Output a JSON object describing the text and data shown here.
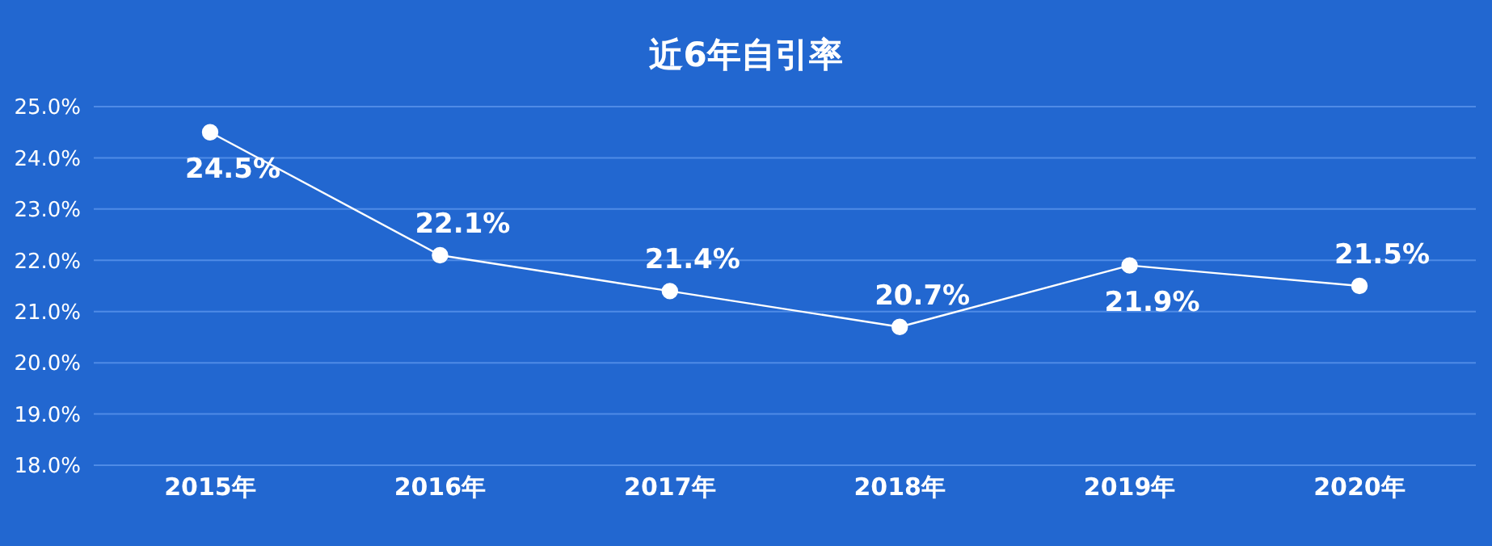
{
  "chart_data": {
    "type": "line",
    "title": "近6年自引率",
    "categories": [
      "2015年",
      "2016年",
      "2017年",
      "2018年",
      "2019年",
      "2020年"
    ],
    "series": [
      {
        "color": "#ffffff",
        "values": [
          24.5,
          22.1,
          21.4,
          20.7,
          21.9,
          21.5
        ],
        "value_labels": [
          "24.5%",
          "22.1%",
          "21.4%",
          "20.7%",
          "21.9%",
          "21.5%"
        ]
      }
    ],
    "ylim": [
      18,
      25
    ],
    "yticks": [
      {
        "value": 18,
        "label": "18.0%"
      },
      {
        "value": 19,
        "label": "19.0%"
      },
      {
        "value": 20,
        "label": "20.0%"
      },
      {
        "value": 21,
        "label": "21.0%"
      },
      {
        "value": 22,
        "label": "22.0%"
      },
      {
        "value": 23,
        "label": "23.0%"
      },
      {
        "value": 24,
        "label": "24.0%"
      },
      {
        "value": 25,
        "label": "25.0%"
      }
    ],
    "grid": "y",
    "marker": "circle",
    "line_style": "solid",
    "legend": false
  }
}
